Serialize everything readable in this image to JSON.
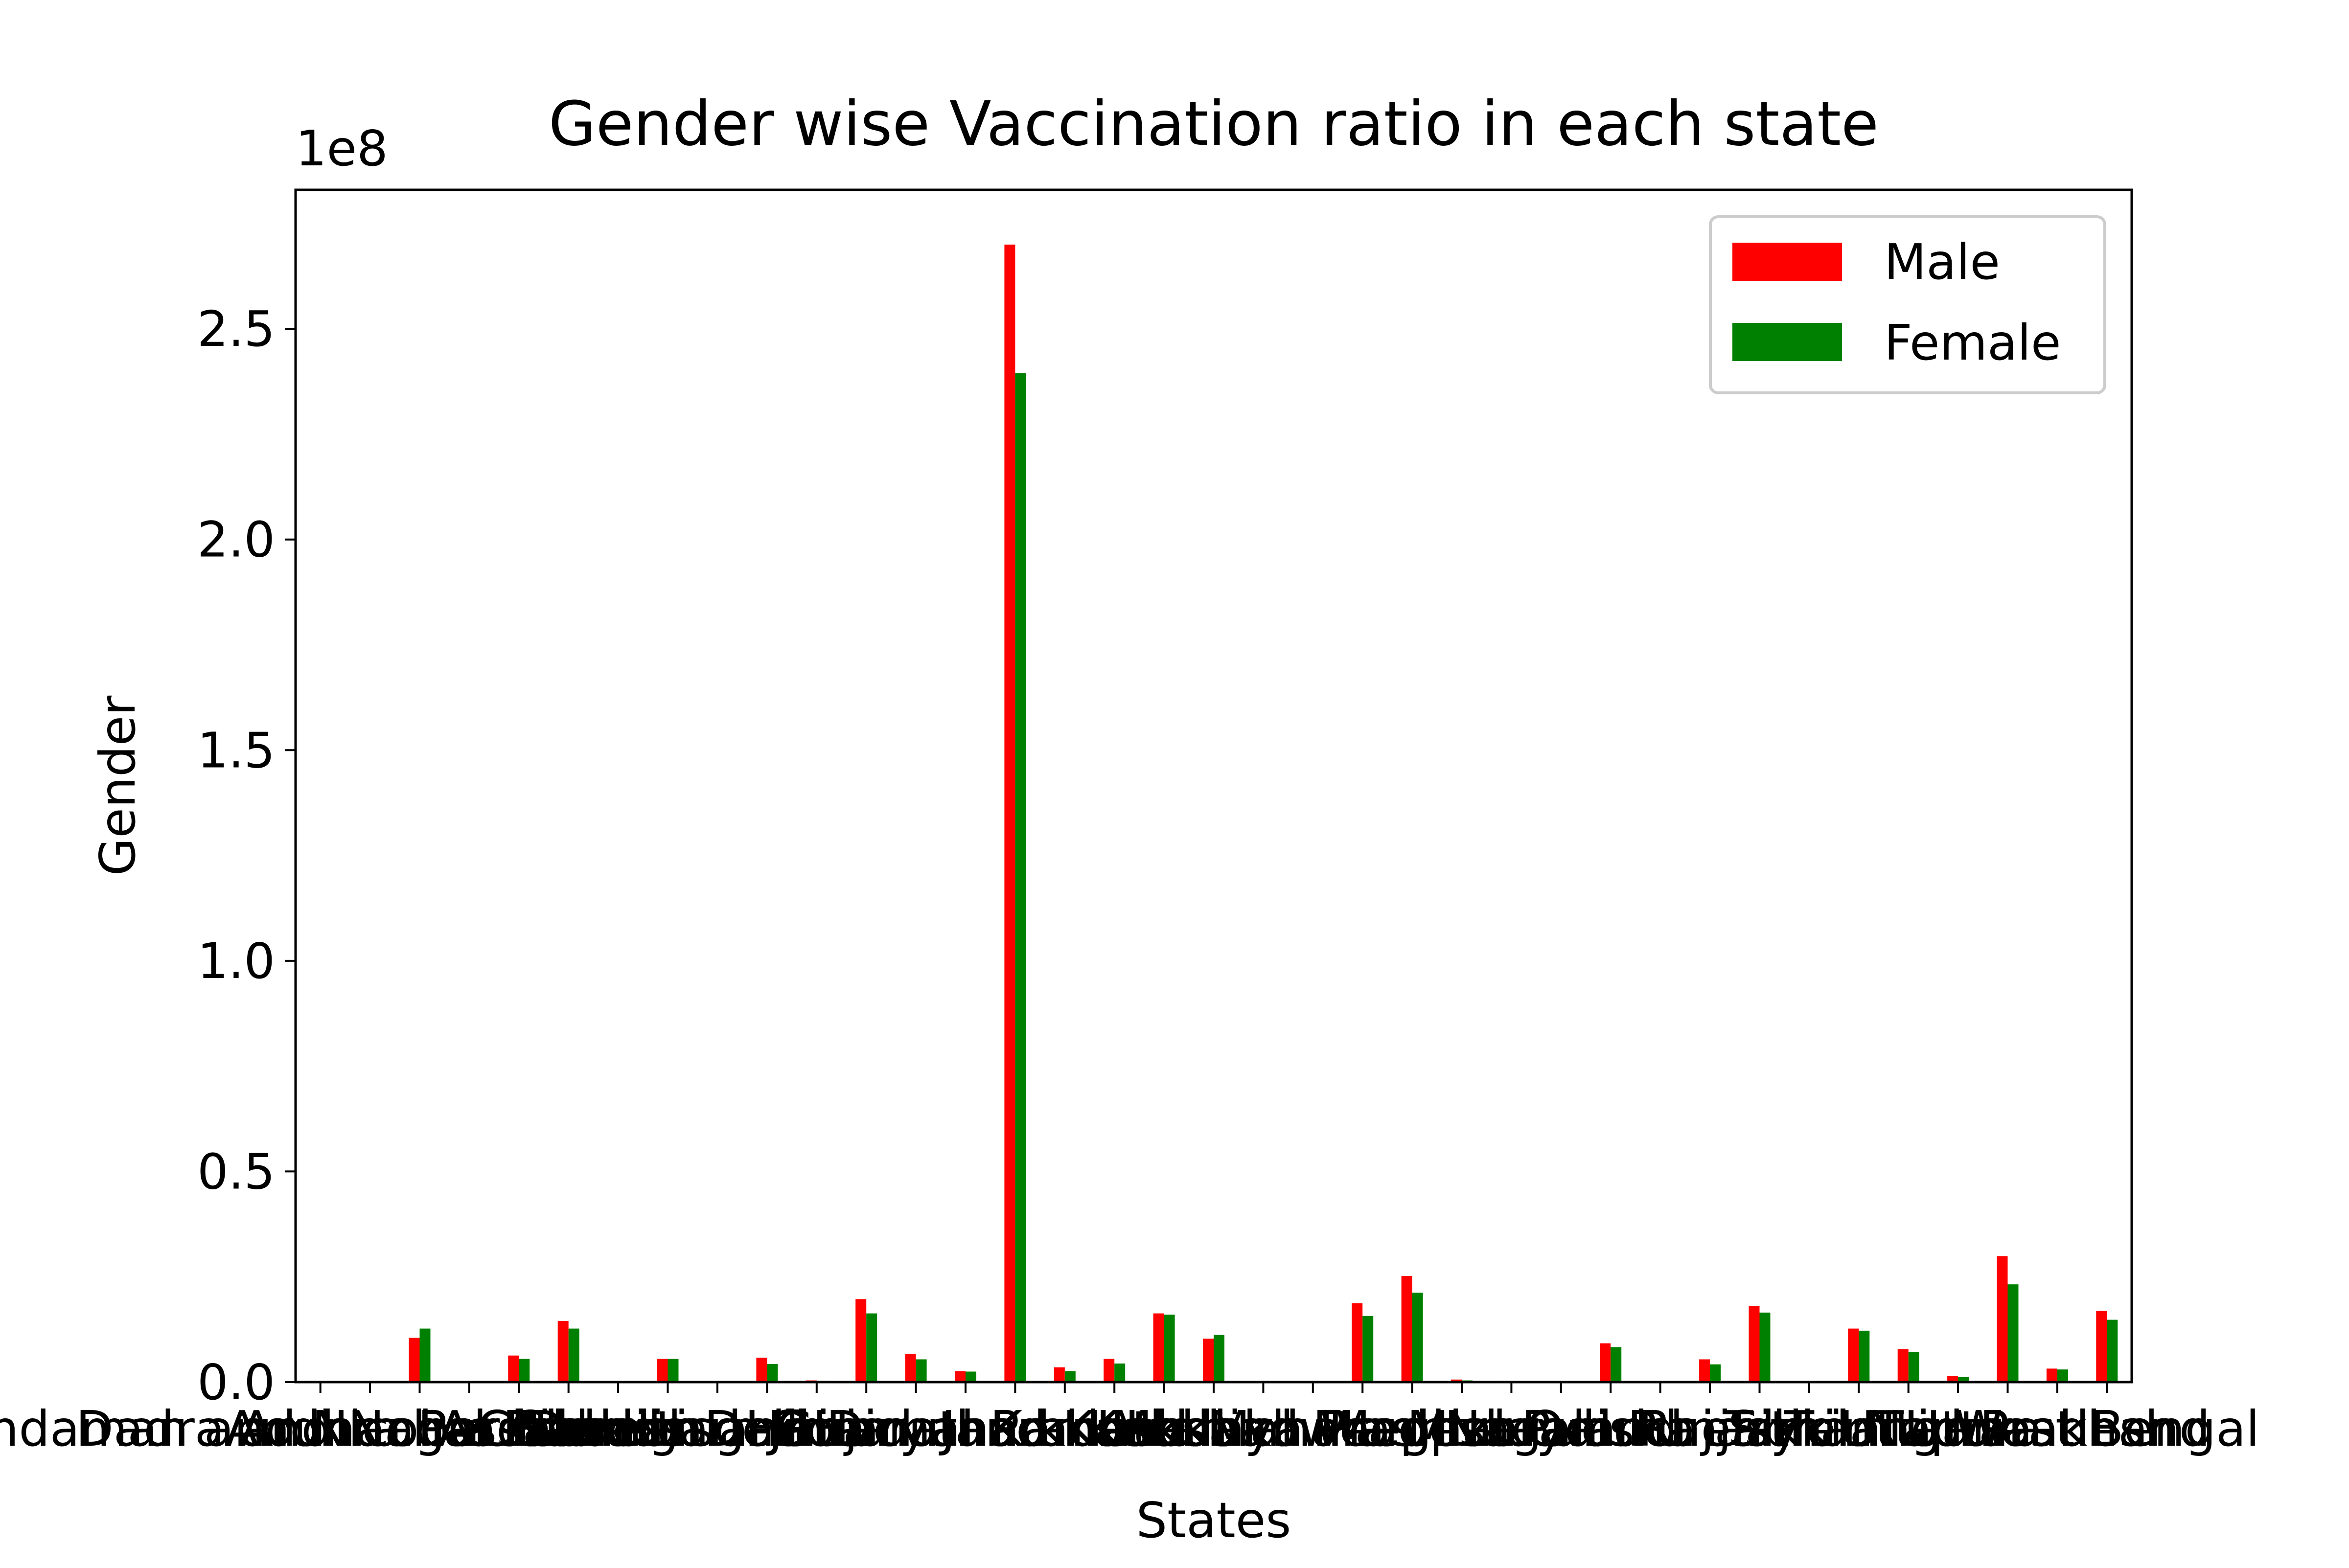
{
  "chart_data": {
    "type": "bar",
    "title": "Gender wise Vaccination ratio in each state",
    "xlabel": "States",
    "ylabel": "Gender",
    "offset_label": "1e8",
    "ylim": [
      0,
      2.83
    ],
    "yticks": [
      0.0,
      0.5,
      1.0,
      1.5,
      2.0,
      2.5
    ],
    "ytick_labels": [
      "0.0",
      "0.5",
      "1.0",
      "1.5",
      "2.0",
      "2.5"
    ],
    "legend_position": "top-right",
    "grid": false,
    "categories": [
      "Andaman and Nicobar Islands",
      "Dadra and Nagar Haveli",
      "Andhra Pradesh",
      "Arunachal Pradesh",
      "Assam",
      "Bihar",
      "Chandigarh",
      "Chhattisgarh",
      "Daman and Diu",
      "Delhi",
      "Goa",
      "Gujarat",
      "Haryana",
      "Himachal Pradesh",
      "Jammu and Kashmir",
      "Jharkhand",
      "Karnataka",
      "Kerala",
      "Ladakh",
      "Lakshadweep",
      "Madhya Pradesh",
      "Maharashtra",
      "Manipur",
      "Meghalaya",
      "Mizoram",
      "Nagaland",
      "Odisha",
      "Puducherry",
      "Punjab",
      "Rajasthan",
      "Sikkim",
      "Tamil Nadu",
      "Telangana",
      "Tripura",
      "Uttar Pradesh",
      "Uttarakhand",
      "West Bengal"
    ],
    "series": [
      {
        "name": "Male",
        "color": "#ff0000",
        "values": [
          0.0,
          0.0,
          0.105,
          0.0,
          0.063,
          0.145,
          0.0,
          0.055,
          0.0,
          0.058,
          0.004,
          0.197,
          0.067,
          0.026,
          2.7,
          0.035,
          0.055,
          0.163,
          0.103,
          0.0,
          0.0,
          0.187,
          0.252,
          0.006,
          0.003,
          0.0,
          0.092,
          0.0,
          0.054,
          0.181,
          0.0,
          0.127,
          0.078,
          0.014,
          0.299,
          0.032,
          0.169
        ]
      },
      {
        "name": "Female",
        "color": "#008000",
        "values": [
          0.0,
          0.0,
          0.127,
          0.0,
          0.055,
          0.127,
          0.0,
          0.055,
          0.0,
          0.043,
          0.003,
          0.163,
          0.054,
          0.025,
          2.395,
          0.026,
          0.044,
          0.16,
          0.112,
          0.0,
          0.0,
          0.157,
          0.212,
          0.004,
          0.002,
          0.0,
          0.083,
          0.0,
          0.042,
          0.165,
          0.0,
          0.122,
          0.071,
          0.012,
          0.232,
          0.03,
          0.148
        ]
      }
    ]
  }
}
